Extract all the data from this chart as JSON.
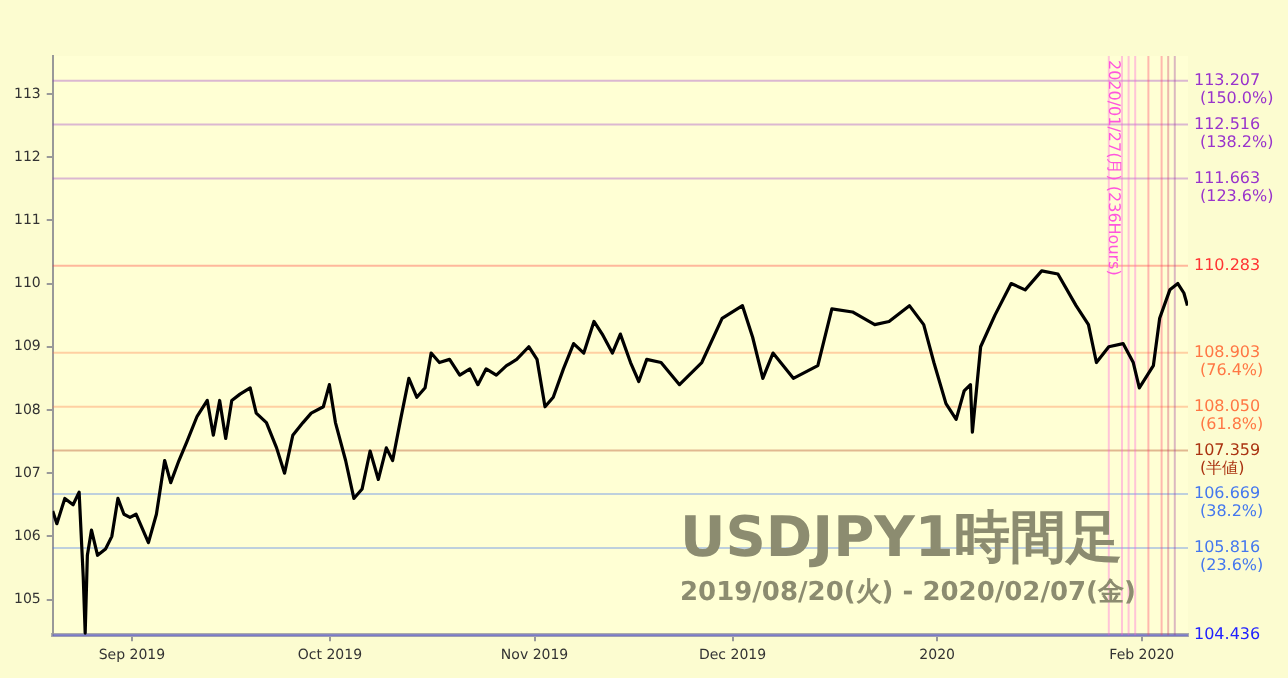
{
  "chart_data": {
    "type": "line",
    "title": "USDJPY1時間足",
    "subtitle": "2019/08/20(火) - 2020/02/07(金)",
    "xlim": [
      "2019-08-20T00:00",
      "2020-02-08T00:00"
    ],
    "xticks": [
      {
        "value": "2019-09-01",
        "label": "Sep 2019"
      },
      {
        "value": "2019-10-01",
        "label": "Oct 2019"
      },
      {
        "value": "2019-11-01",
        "label": "Nov 2019"
      },
      {
        "value": "2019-12-01",
        "label": "Dec 2019"
      },
      {
        "value": "2020-01-01",
        "label": "2020"
      },
      {
        "value": "2020-02-01",
        "label": "Feb 2020"
      }
    ],
    "ylim": [
      104.436,
      113.6
    ],
    "yticks": [
      105,
      106,
      107,
      108,
      109,
      110,
      111,
      112,
      113
    ],
    "grid": false,
    "legend": false,
    "marker": "none",
    "line_style": "solid",
    "series": [
      {
        "color": "#000000",
        "x": [
          "2019-08-20T00:00",
          "2019-08-20T15:00",
          "2019-08-21T20:00",
          "2019-08-23T02:00",
          "2019-08-24T00:00",
          "2019-08-24T15:00",
          "2019-08-24T22:00",
          "2019-08-25T06:00",
          "2019-08-25T21:00",
          "2019-08-26T19:00",
          "2019-08-28T00:00",
          "2019-08-28T23:00",
          "2019-08-29T21:00",
          "2019-08-30T19:00",
          "2019-08-31T17:00",
          "2019-09-01T15:00",
          "2019-09-03T12:00",
          "2019-09-04T17:00",
          "2019-09-05T23:00",
          "2019-09-06T21:00",
          "2019-09-08T03:00",
          "2019-09-09T08:00",
          "2019-09-10T21:00",
          "2019-09-12T10:00",
          "2019-09-13T08:00",
          "2019-09-14T07:00",
          "2019-09-15T05:00",
          "2019-09-16T03:00",
          "2019-09-17T09:00",
          "2019-09-18T22:00",
          "2019-09-19T20:00",
          "2019-09-21T09:00",
          "2019-09-22T22:00",
          "2019-09-24T03:00",
          "2019-09-25T09:00",
          "2019-09-26T22:00",
          "2019-09-28T04:00",
          "2019-09-30T00:00",
          "2019-09-30T22:00",
          "2019-10-01T20:00",
          "2019-10-03T09:00",
          "2019-10-04T15:00",
          "2019-10-05T21:00",
          "2019-10-07T02:00",
          "2019-10-08T08:00",
          "2019-10-09T13:00",
          "2019-10-10T12:00",
          "2019-10-11T17:00",
          "2019-10-12T23:00",
          "2019-10-14T04:00",
          "2019-10-15T10:00",
          "2019-10-16T08:00",
          "2019-10-17T14:00",
          "2019-10-19T03:00",
          "2019-10-20T16:00",
          "2019-10-22T05:00",
          "2019-10-23T10:00",
          "2019-10-24T16:00",
          "2019-10-26T05:00",
          "2019-10-27T18:00",
          "2019-10-29T07:00",
          "2019-10-31T03:00",
          "2019-11-01T09:00",
          "2019-11-02T14:00",
          "2019-11-03T20:00",
          "2019-11-05T09:00",
          "2019-11-06T22:00",
          "2019-11-08T11:00",
          "2019-11-10T00:00",
          "2019-11-11T06:00",
          "2019-11-12T19:00",
          "2019-11-14T00:00",
          "2019-11-15T13:00",
          "2019-11-16T19:00",
          "2019-11-18T00:00",
          "2019-11-20T04:00",
          "2019-11-22T23:00",
          "2019-11-26T08:00",
          "2019-11-29T10:00",
          "2019-12-02T12:00",
          "2019-12-04T01:00",
          "2019-12-05T14:00",
          "2019-12-07T03:00",
          "2019-12-10T05:00",
          "2019-12-13T22:00",
          "2019-12-16T01:00",
          "2019-12-19T04:00",
          "2019-12-22T13:00",
          "2019-12-24T17:00",
          "2019-12-27T19:00",
          "2019-12-29T23:00",
          "2019-12-31T12:00",
          "2020-01-02T08:00",
          "2020-01-03T21:00",
          "2020-01-05T02:00",
          "2020-01-06T01:00",
          "2020-01-06T08:00",
          "2020-01-07T14:00",
          "2020-01-09T18:00",
          "2020-01-12T05:00",
          "2020-01-14T08:00",
          "2020-01-16T20:00",
          "2020-01-19T07:00",
          "2020-01-22T01:00",
          "2020-01-23T22:00",
          "2020-01-25T03:00",
          "2020-01-27T00:00",
          "2020-01-29T04:00",
          "2020-01-30T17:00",
          "2020-01-31T15:00",
          "2020-02-02T18:00",
          "2020-02-03T17:00",
          "2020-02-05T06:00",
          "2020-02-06T11:00",
          "2020-02-07T09:00",
          "2020-02-07T22:00"
        ],
        "values": [
          106.4,
          106.2,
          106.6,
          106.5,
          106.7,
          105.35,
          104.47,
          105.7,
          106.1,
          105.7,
          105.8,
          106.0,
          106.6,
          106.35,
          106.3,
          106.35,
          105.9,
          106.35,
          107.2,
          106.85,
          107.2,
          107.5,
          107.9,
          108.15,
          107.6,
          108.15,
          107.55,
          108.15,
          108.25,
          108.35,
          107.95,
          107.8,
          107.4,
          107.0,
          107.6,
          107.8,
          107.95,
          108.05,
          108.4,
          107.8,
          107.2,
          106.6,
          106.75,
          107.35,
          106.9,
          107.4,
          107.2,
          107.85,
          108.5,
          108.2,
          108.35,
          108.9,
          108.75,
          108.8,
          108.55,
          108.65,
          108.4,
          108.65,
          108.55,
          108.7,
          108.8,
          109.0,
          108.8,
          108.05,
          108.2,
          108.65,
          109.05,
          108.9,
          109.4,
          109.2,
          108.9,
          109.2,
          108.75,
          108.45,
          108.8,
          108.75,
          108.4,
          108.75,
          109.45,
          109.65,
          109.15,
          108.5,
          108.9,
          108.5,
          108.7,
          109.6,
          109.55,
          109.35,
          109.4,
          109.65,
          109.35,
          108.75,
          108.1,
          107.85,
          108.3,
          108.4,
          107.65,
          109.0,
          109.5,
          110.0,
          109.9,
          110.2,
          110.15,
          109.65,
          109.35,
          108.75,
          109.0,
          109.05,
          108.75,
          108.35,
          108.7,
          109.45,
          109.9,
          110.0,
          109.85,
          109.65
        ]
      }
    ],
    "ref_lines": [
      {
        "axis": "y",
        "value": 113.207,
        "label": "113.207\n(150.0%)",
        "color": "#9933cc"
      },
      {
        "axis": "y",
        "value": 112.516,
        "label": "112.516\n(138.2%)",
        "color": "#9933cc"
      },
      {
        "axis": "y",
        "value": 111.663,
        "label": "111.663\n(123.6%)",
        "color": "#9933cc"
      },
      {
        "axis": "y",
        "value": 110.283,
        "label": "110.283",
        "color": "#ff3333"
      },
      {
        "axis": "y",
        "value": 108.903,
        "label": "108.903\n(76.4%)",
        "color": "#ff7744"
      },
      {
        "axis": "y",
        "value": 108.05,
        "label": "108.050\n(61.8%)",
        "color": "#ff7744"
      },
      {
        "axis": "y",
        "value": 107.359,
        "label": "107.359\n(半値)",
        "color": "#aa3311"
      },
      {
        "axis": "y",
        "value": 106.669,
        "label": "106.669\n(38.2%)",
        "color": "#4477ee"
      },
      {
        "axis": "y",
        "value": 105.816,
        "label": "105.816\n(23.6%)",
        "color": "#4477ee"
      },
      {
        "axis": "y",
        "value": 104.436,
        "label": "104.436",
        "color": "#2222ff"
      },
      {
        "axis": "x",
        "value": "2020-01-27",
        "label": "2020/01/27(月) (236Hours)",
        "color": "#ff55dd"
      },
      {
        "axis": "x",
        "value": "2020-01-29",
        "label": null,
        "color": "#ff55dd"
      },
      {
        "axis": "x",
        "value": "2020-01-30",
        "label": null,
        "color": "#ff55dd"
      },
      {
        "axis": "x",
        "value": "2020-01-31",
        "label": null,
        "color": "#ff55dd"
      },
      {
        "axis": "x",
        "value": "2020-02-02",
        "label": null,
        "color": "#ff3366"
      },
      {
        "axis": "x",
        "value": "2020-02-04",
        "label": null,
        "color": "#ff3366"
      },
      {
        "axis": "x",
        "value": "2020-02-05",
        "label": null,
        "color": "#cc3366"
      },
      {
        "axis": "x",
        "value": "2020-02-06",
        "label": null,
        "color": "#993399"
      }
    ]
  }
}
